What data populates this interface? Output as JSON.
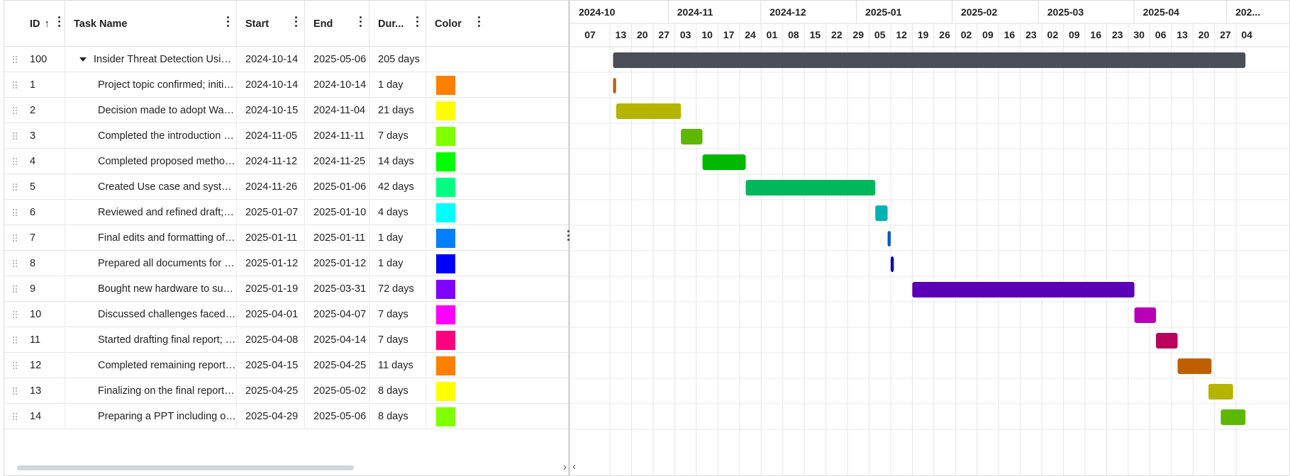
{
  "columns": {
    "id": "ID",
    "name": "Task Name",
    "start": "Start",
    "end": "End",
    "duration": "Dur...",
    "color": "Color"
  },
  "tasks": [
    {
      "id": "100",
      "name": "Insider Threat Detection Using SIE...",
      "start": "2024-10-14",
      "end": "2025-05-06",
      "duration": "205 days",
      "color": "#4a4f57",
      "parent": true
    },
    {
      "id": "1",
      "name": "Project topic confirmed; initial obj...",
      "start": "2024-10-14",
      "end": "2024-10-14",
      "duration": "1 day",
      "color": "#ff8000"
    },
    {
      "id": "2",
      "name": "Decision made to adopt Wazuh a...",
      "start": "2024-10-15",
      "end": "2024-11-04",
      "duration": "21 days",
      "color": "#ffff00"
    },
    {
      "id": "3",
      "name": "Completed the introduction and p...",
      "start": "2024-11-05",
      "end": "2024-11-11",
      "duration": "7 days",
      "color": "#80ff00"
    },
    {
      "id": "4",
      "name": "Completed proposed methodolog...",
      "start": "2024-11-12",
      "end": "2024-11-25",
      "duration": "14 days",
      "color": "#00ff00"
    },
    {
      "id": "5",
      "name": "Created Use case and system ar...",
      "start": "2024-11-26",
      "end": "2025-01-06",
      "duration": "42 days",
      "color": "#00ff80"
    },
    {
      "id": "6",
      "name": "Reviewed and refined draft; impl...",
      "start": "2025-01-07",
      "end": "2025-01-10",
      "duration": "4 days",
      "color": "#00ffff"
    },
    {
      "id": "7",
      "name": "Final edits and formatting of First ...",
      "start": "2025-01-11",
      "end": "2025-01-11",
      "duration": "1 day",
      "color": "#0080ff"
    },
    {
      "id": "8",
      "name": "Prepared all documents for subm...",
      "start": "2025-01-12",
      "end": "2025-01-12",
      "duration": "1 day",
      "color": "#0000ff"
    },
    {
      "id": "9",
      "name": "Bought new hardware to support ...",
      "start": "2025-01-19",
      "end": "2025-03-31",
      "duration": "72 days",
      "color": "#8000ff"
    },
    {
      "id": "10",
      "name": "Discussed challenges faced whil...",
      "start": "2025-04-01",
      "end": "2025-04-07",
      "duration": "7 days",
      "color": "#ff00ff"
    },
    {
      "id": "11",
      "name": "Started drafting final report; Com...",
      "start": "2025-04-08",
      "end": "2025-04-14",
      "duration": "7 days",
      "color": "#ff0080"
    },
    {
      "id": "12",
      "name": "Completed remaining report; Sub...",
      "start": "2025-04-15",
      "end": "2025-04-25",
      "duration": "11 days",
      "color": "#ff8000"
    },
    {
      "id": "13",
      "name": "Finalizing on the final report draft ...",
      "start": "2025-04-25",
      "end": "2025-05-02",
      "duration": "8 days",
      "color": "#ffff00"
    },
    {
      "id": "14",
      "name": "Preparing a PPT including overvi...",
      "start": "2025-04-29",
      "end": "2025-05-06",
      "duration": "8 days",
      "color": "#80ff00"
    }
  ],
  "timeline": {
    "months": [
      "2024-10",
      "2024-11",
      "2024-12",
      "2025-01",
      "2025-02",
      "2025-03",
      "2025-04",
      "202..."
    ],
    "weeks": [
      "07",
      "13",
      "20",
      "27",
      "03",
      "10",
      "17",
      "24",
      "01",
      "08",
      "15",
      "22",
      "29",
      "05",
      "12",
      "19",
      "26",
      "02",
      "09",
      "16",
      "23",
      "02",
      "09",
      "16",
      "23",
      "30",
      "06",
      "13",
      "20",
      "27",
      "04"
    ]
  },
  "bar_colors": {
    "100": "#4a4f57",
    "1": "#bf6000",
    "2": "#b5b500",
    "3": "#5cb800",
    "4": "#00b800",
    "5": "#00b85c",
    "6": "#00b3b3",
    "7": "#005cb8",
    "8": "#0000b8",
    "9": "#5c00b8",
    "10": "#b800b8",
    "11": "#b8005c",
    "12": "#bf6000",
    "13": "#b5b500",
    "14": "#5cb800"
  }
}
